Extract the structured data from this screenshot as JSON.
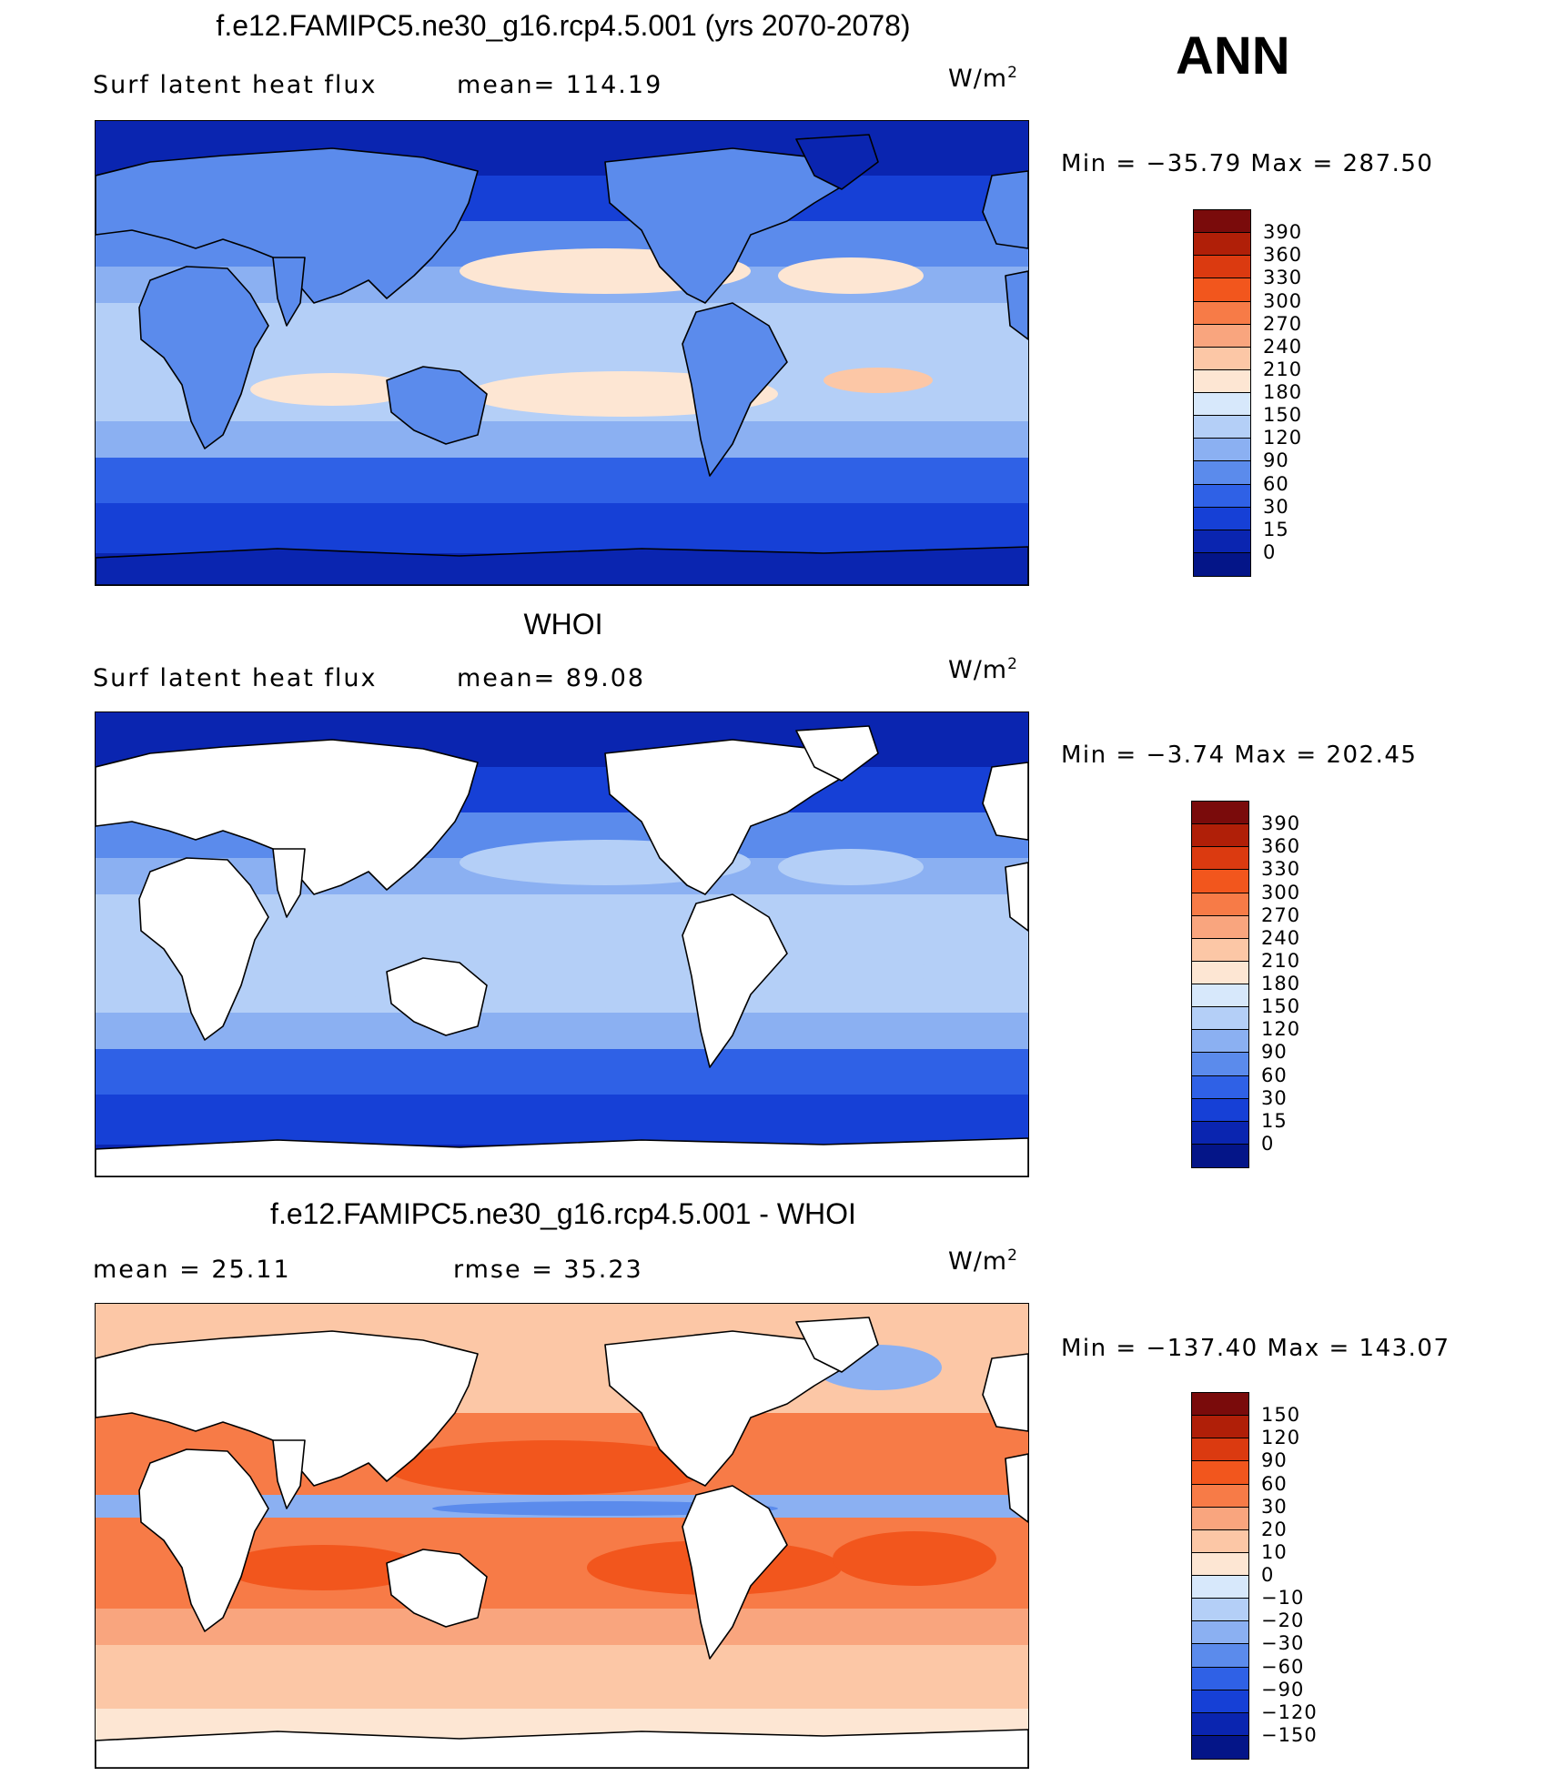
{
  "season": "ANN",
  "units_base": "W/m",
  "units_exp": "2",
  "panels": [
    {
      "title": "f.e12.FAMIPC5.ne30_g16.rcp4.5.001 (yrs 2070-2078)",
      "left_label": "Surf latent heat flux",
      "right_label": "mean=  114.19",
      "minmax": "Min  =  −35.79  Max  =  287.50",
      "land_masked": false,
      "ocean_color": "#2a5fe6",
      "land_color": "#1f4fd6"
    },
    {
      "title": "WHOI",
      "left_label": "Surf latent heat flux",
      "right_label": "mean=   89.08",
      "minmax": "Min  =    −3.74  Max  =  202.45",
      "land_masked": true,
      "ocean_color": "#3a6ff0",
      "land_color": "#ffffff"
    },
    {
      "title": "f.e12.FAMIPC5.ne30_g16.rcp4.5.001 - WHOI",
      "left_label": "mean  =    25.11",
      "right_label": "rmse  =    35.23",
      "minmax": "Min  =  −137.40  Max  =  143.07",
      "land_masked": true,
      "ocean_color": "#f6a07a",
      "land_color": "#ffffff"
    }
  ],
  "colorbars": [
    {
      "labels": [
        "390",
        "360",
        "330",
        "300",
        "270",
        "240",
        "210",
        "180",
        "150",
        "120",
        "90",
        "60",
        "30",
        "15",
        "0"
      ],
      "colors": [
        "#7a0b0b",
        "#b01f08",
        "#db3a10",
        "#f2561d",
        "#f77b47",
        "#f9a57e",
        "#fcc7a6",
        "#fde6d3",
        "#d7e8fb",
        "#b4cff7",
        "#8bb0f2",
        "#5b8bec",
        "#2f61e6",
        "#1640d6",
        "#0a25b0",
        "#041588"
      ]
    },
    {
      "labels": [
        "390",
        "360",
        "330",
        "300",
        "270",
        "240",
        "210",
        "180",
        "150",
        "120",
        "90",
        "60",
        "30",
        "15",
        "0"
      ],
      "colors": [
        "#7a0b0b",
        "#b01f08",
        "#db3a10",
        "#f2561d",
        "#f77b47",
        "#f9a57e",
        "#fcc7a6",
        "#fde6d3",
        "#d7e8fb",
        "#b4cff7",
        "#8bb0f2",
        "#5b8bec",
        "#2f61e6",
        "#1640d6",
        "#0a25b0",
        "#041588"
      ]
    },
    {
      "labels": [
        "150",
        "120",
        "90",
        "60",
        "30",
        "20",
        "10",
        "0",
        "−10",
        "−20",
        "−30",
        "−60",
        "−90",
        "−120",
        "−150"
      ],
      "colors": [
        "#7a0b0b",
        "#b01f08",
        "#db3a10",
        "#f2561d",
        "#f77b47",
        "#f9a57e",
        "#fcc7a6",
        "#fde6d3",
        "#d7e8fb",
        "#b4cff7",
        "#8bb0f2",
        "#5b8bec",
        "#2f61e6",
        "#1640d6",
        "#0a25b0",
        "#041588"
      ]
    }
  ]
}
